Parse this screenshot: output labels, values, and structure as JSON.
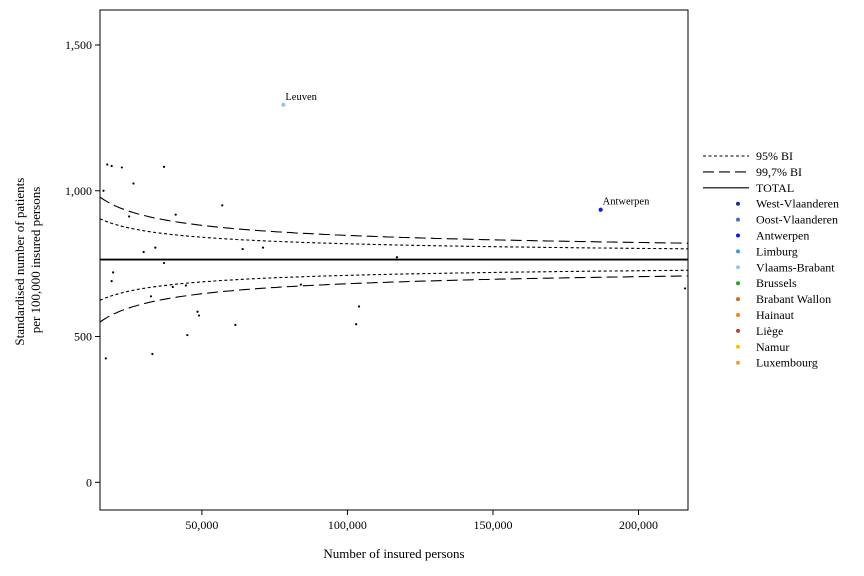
{
  "chart_data": {
    "type": "scatter",
    "xlabel": "Number of insured persons",
    "ylabel_lines": [
      "Standardised number of patients",
      "per 100,000 insured persons"
    ],
    "xlim": [
      15000,
      217000
    ],
    "ylim": [
      -95,
      1620
    ],
    "x_ticks": [
      {
        "value": 50000,
        "label": "50,000"
      },
      {
        "value": 100000,
        "label": "100,000"
      },
      {
        "value": 150000,
        "label": "150,000"
      },
      {
        "value": 200000,
        "label": "200,000"
      }
    ],
    "y_ticks": [
      {
        "value": 0,
        "label": "0"
      },
      {
        "value": 500,
        "label": "500"
      },
      {
        "value": 1000,
        "label": "1,000"
      },
      {
        "value": 1500,
        "label": "1,500"
      }
    ],
    "total": 764,
    "limit_curves": [
      {
        "name": "95% BI",
        "style": "dotted",
        "z": 1.96
      },
      {
        "name": "99,7% BI",
        "style": "dashed",
        "z": 3
      }
    ],
    "legend": [
      {
        "label": "95% BI",
        "kind": "dotted"
      },
      {
        "label": "99,7% BI",
        "kind": "dashed"
      },
      {
        "label": "TOTAL",
        "kind": "solid"
      },
      {
        "label": "West-Vlaanderen",
        "kind": "dot",
        "color": "#1f2f8f"
      },
      {
        "label": "Oost-Vlaanderen",
        "kind": "dot",
        "color": "#3f6fd6"
      },
      {
        "label": "Antwerpen",
        "kind": "dot",
        "color": "#0a1fd6"
      },
      {
        "label": "Limburg",
        "kind": "dot",
        "color": "#3a9ad9"
      },
      {
        "label": "Vlaams-Brabant",
        "kind": "dot",
        "color": "#8ecae6"
      },
      {
        "label": "Brussels",
        "kind": "dot",
        "color": "#2ca02c"
      },
      {
        "label": "Brabant Wallon",
        "kind": "dot",
        "color": "#d2691e"
      },
      {
        "label": "Hainaut",
        "kind": "dot",
        "color": "#ff7f0e"
      },
      {
        "label": "Liège",
        "kind": "dot",
        "color": "#b5472f"
      },
      {
        "label": "Namur",
        "kind": "dot",
        "color": "#f2c500"
      },
      {
        "label": "Luxembourg",
        "kind": "dot",
        "color": "#e8a33c"
      }
    ],
    "points": [
      {
        "x": 78000,
        "y": 1295,
        "color": "#8ecae6",
        "label": "Leuven"
      },
      {
        "x": 187000,
        "y": 935,
        "color": "#0a1fd6",
        "label": "Antwerpen"
      },
      {
        "x": 17500,
        "y": 1090,
        "color": "#000000"
      },
      {
        "x": 19000,
        "y": 1085,
        "color": "#000000"
      },
      {
        "x": 22500,
        "y": 1080,
        "color": "#000000"
      },
      {
        "x": 37000,
        "y": 1082,
        "color": "#000000"
      },
      {
        "x": 16200,
        "y": 1000,
        "color": "#000000"
      },
      {
        "x": 26500,
        "y": 1025,
        "color": "#000000"
      },
      {
        "x": 57000,
        "y": 950,
        "color": "#000000"
      },
      {
        "x": 25000,
        "y": 912,
        "color": "#000000"
      },
      {
        "x": 41000,
        "y": 918,
        "color": "#000000"
      },
      {
        "x": 30000,
        "y": 790,
        "color": "#000000"
      },
      {
        "x": 34000,
        "y": 805,
        "color": "#000000"
      },
      {
        "x": 64000,
        "y": 800,
        "color": "#000000"
      },
      {
        "x": 71000,
        "y": 805,
        "color": "#000000"
      },
      {
        "x": 117000,
        "y": 772,
        "color": "#000000"
      },
      {
        "x": 37000,
        "y": 752,
        "color": "#000000"
      },
      {
        "x": 19500,
        "y": 720,
        "color": "#000000"
      },
      {
        "x": 19000,
        "y": 690,
        "color": "#000000"
      },
      {
        "x": 40000,
        "y": 670,
        "color": "#000000"
      },
      {
        "x": 44500,
        "y": 675,
        "color": "#000000"
      },
      {
        "x": 84000,
        "y": 678,
        "color": "#000000"
      },
      {
        "x": 216000,
        "y": 665,
        "color": "#000000"
      },
      {
        "x": 32500,
        "y": 638,
        "color": "#000000"
      },
      {
        "x": 48500,
        "y": 585,
        "color": "#000000"
      },
      {
        "x": 49000,
        "y": 572,
        "color": "#000000"
      },
      {
        "x": 104000,
        "y": 603,
        "color": "#000000"
      },
      {
        "x": 61500,
        "y": 540,
        "color": "#000000"
      },
      {
        "x": 103000,
        "y": 542,
        "color": "#000000"
      },
      {
        "x": 45000,
        "y": 505,
        "color": "#000000"
      },
      {
        "x": 33000,
        "y": 440,
        "color": "#000000"
      },
      {
        "x": 17000,
        "y": 425,
        "color": "#000000"
      }
    ]
  }
}
